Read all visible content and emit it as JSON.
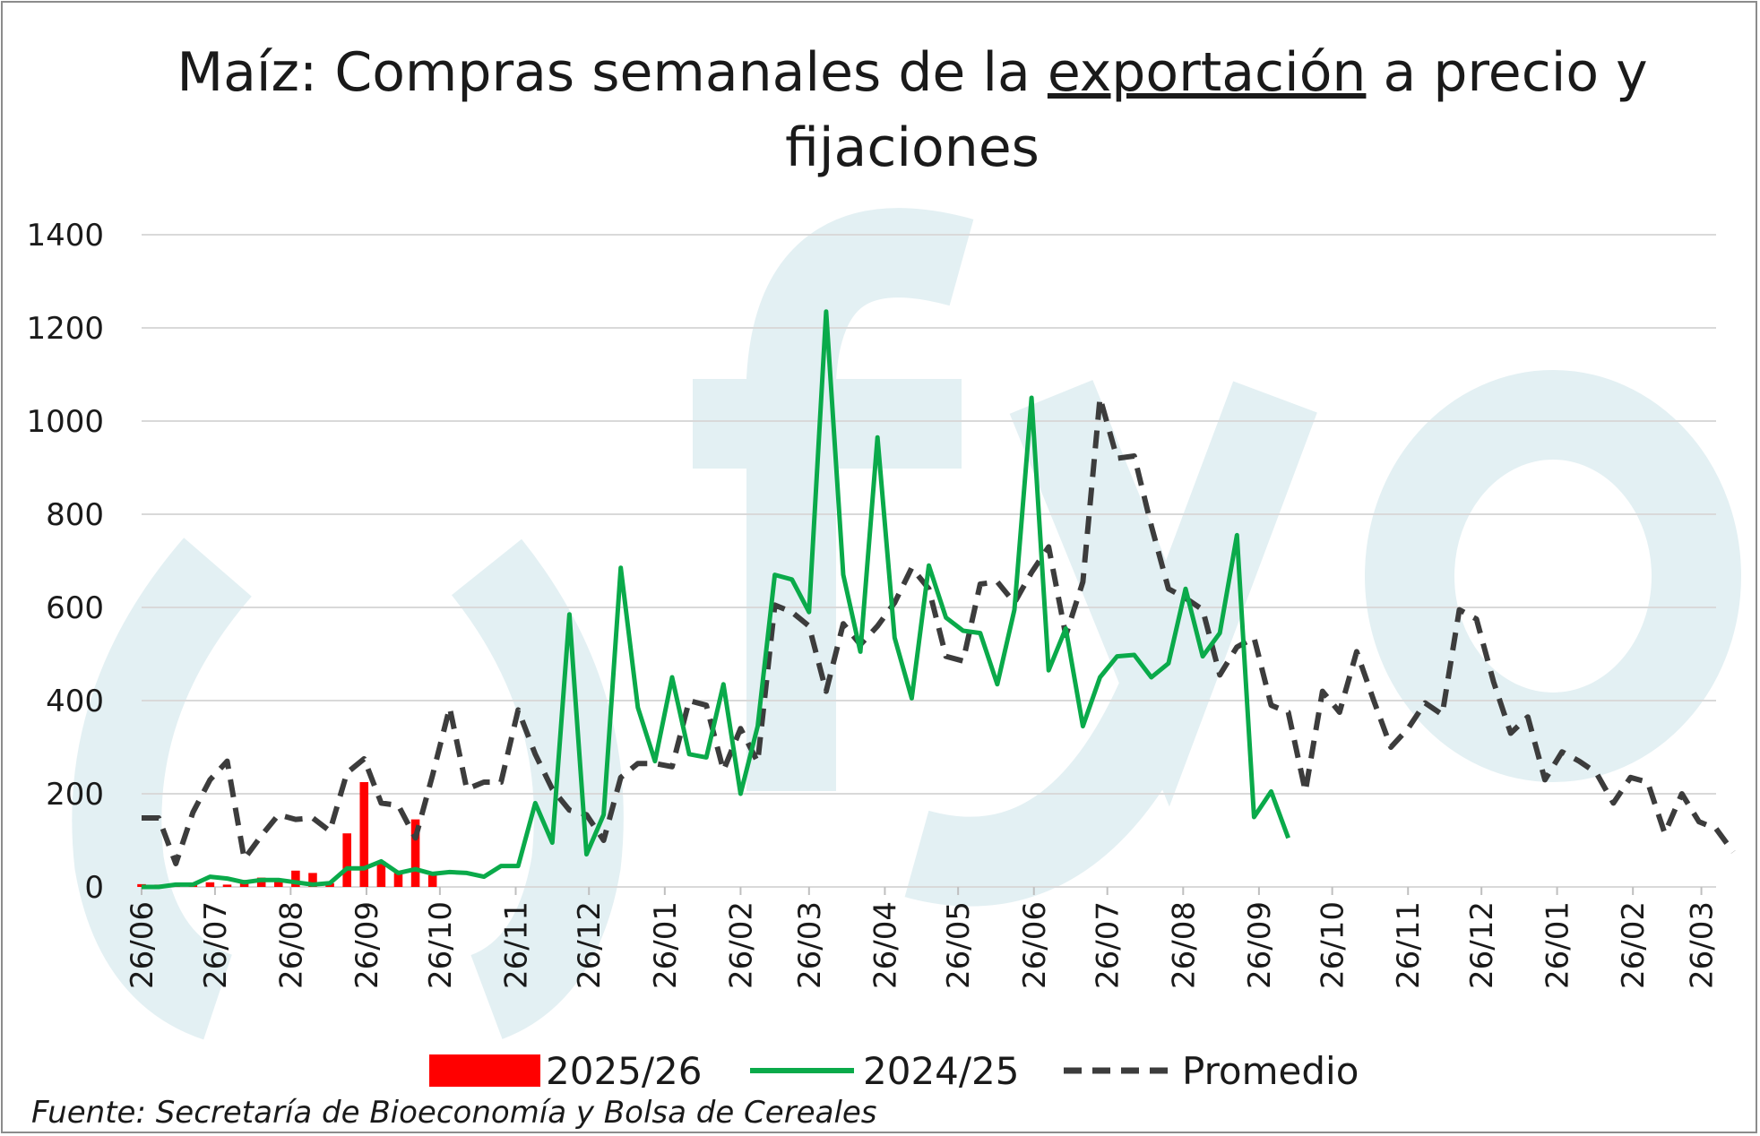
{
  "title": {
    "before": "Maíz: Compras semanales de la ",
    "underlined": "exportación",
    "after": " a precio y",
    "line2": "fijaciones"
  },
  "source": "Fuente: Secretaría de Bioeconomía y Bolsa de Cereales",
  "watermark_color": "#e3f0f3",
  "chart_data": {
    "type": "line",
    "y_range": [
      0,
      1400
    ],
    "y_ticks": [
      "0",
      "200",
      "400",
      "600",
      "800",
      "1000",
      "1200",
      "1400"
    ],
    "x_range": [
      0,
      92
    ],
    "x_ticks": [
      {
        "x": 0,
        "label": "26/06"
      },
      {
        "x": 4.29,
        "label": "26/07"
      },
      {
        "x": 8.71,
        "label": "26/08"
      },
      {
        "x": 13.14,
        "label": "26/09"
      },
      {
        "x": 17.43,
        "label": "26/10"
      },
      {
        "x": 21.86,
        "label": "26/11"
      },
      {
        "x": 26.14,
        "label": "26/12"
      },
      {
        "x": 30.57,
        "label": "26/01"
      },
      {
        "x": 35,
        "label": "26/02"
      },
      {
        "x": 39,
        "label": "26/03"
      },
      {
        "x": 43.43,
        "label": "26/04"
      },
      {
        "x": 47.71,
        "label": "26/05"
      },
      {
        "x": 52.14,
        "label": "26/06"
      },
      {
        "x": 56.43,
        "label": "26/07"
      },
      {
        "x": 60.86,
        "label": "26/08"
      },
      {
        "x": 65.29,
        "label": "26/09"
      },
      {
        "x": 69.57,
        "label": "26/10"
      },
      {
        "x": 74,
        "label": "26/11"
      },
      {
        "x": 78.29,
        "label": "26/12"
      },
      {
        "x": 82.71,
        "label": "26/01"
      },
      {
        "x": 87.14,
        "label": "26/02"
      },
      {
        "x": 91.14,
        "label": "26/03"
      }
    ],
    "grid": true,
    "legend_position": "bottom",
    "series": [
      {
        "name": "2025/26",
        "type": "bar",
        "color": "#ff0000",
        "values": [
          6,
          5,
          8,
          4,
          10,
          5,
          15,
          20,
          15,
          35,
          30,
          8,
          115,
          225,
          55,
          30,
          145,
          25
        ]
      },
      {
        "name": "2024/25",
        "type": "line",
        "color": "#0aaa4a",
        "values": [
          0,
          0,
          5,
          5,
          22,
          18,
          10,
          15,
          15,
          10,
          5,
          8,
          40,
          40,
          55,
          30,
          38,
          28,
          32,
          30,
          22,
          45,
          45,
          180,
          95,
          585,
          70,
          155,
          685,
          385,
          270,
          450,
          285,
          278,
          435,
          200,
          345,
          670,
          660,
          590,
          1235,
          670,
          505,
          965,
          535,
          405,
          690,
          578,
          550,
          545,
          435,
          595,
          1050,
          465,
          555,
          345,
          450,
          495,
          498,
          450,
          480,
          640,
          495,
          545,
          755,
          150,
          205,
          105
        ]
      },
      {
        "name": "Promedio",
        "type": "line",
        "dashed": true,
        "color": "#3c3c3c",
        "values": [
          148,
          148,
          50,
          160,
          230,
          270,
          60,
          110,
          155,
          145,
          148,
          120,
          245,
          275,
          180,
          175,
          105,
          240,
          385,
          210,
          225,
          225,
          380,
          285,
          210,
          165,
          155,
          100,
          235,
          265,
          265,
          258,
          400,
          390,
          250,
          340,
          268,
          605,
          590,
          560,
          420,
          565,
          520,
          560,
          610,
          685,
          640,
          495,
          485,
          650,
          655,
          610,
          675,
          730,
          540,
          655,
          1050,
          920,
          925,
          775,
          640,
          620,
          595,
          455,
          515,
          535,
          390,
          375,
          205,
          420,
          375,
          505,
          400,
          300,
          340,
          395,
          370,
          595,
          575,
          440,
          330,
          365,
          230,
          290,
          270,
          245,
          180,
          235,
          225,
          115,
          200,
          140,
          125,
          75
        ]
      }
    ]
  }
}
